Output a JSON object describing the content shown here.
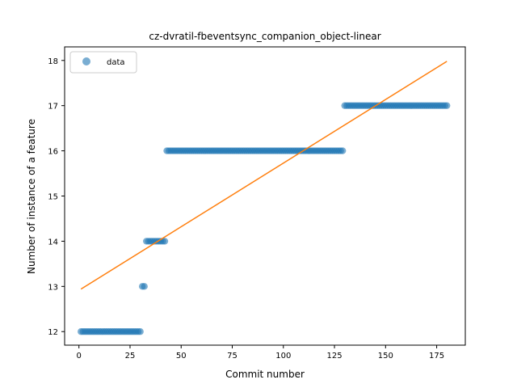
{
  "chart_data": {
    "type": "scatter",
    "title": "cz-dvratil-fbeventsync_companion_object-linear",
    "xlabel": "Commit number",
    "ylabel": "Number of instance of a feature",
    "xlim": [
      -7,
      189
    ],
    "ylim": [
      11.7,
      18.3
    ],
    "xticks": [
      0,
      25,
      50,
      75,
      100,
      125,
      150,
      175
    ],
    "yticks": [
      12,
      13,
      14,
      15,
      16,
      17,
      18
    ],
    "grid": false,
    "legend": {
      "position": "top-left",
      "entries": [
        "data"
      ]
    },
    "colors": {
      "data": "#1f77b4",
      "fit": "#ff7f0e"
    },
    "series": [
      {
        "name": "data",
        "kind": "points",
        "segments": [
          {
            "x_start": 1,
            "x_end": 30,
            "y": 12
          },
          {
            "x_start": 31,
            "x_end": 32,
            "y": 13
          },
          {
            "x_start": 33,
            "x_end": 42,
            "y": 14
          },
          {
            "x_start": 43,
            "x_end": 129,
            "y": 16
          },
          {
            "x_start": 130,
            "x_end": 180,
            "y": 17
          }
        ]
      },
      {
        "kind": "line",
        "x": [
          1,
          180
        ],
        "y": [
          12.94,
          17.98
        ]
      }
    ]
  }
}
